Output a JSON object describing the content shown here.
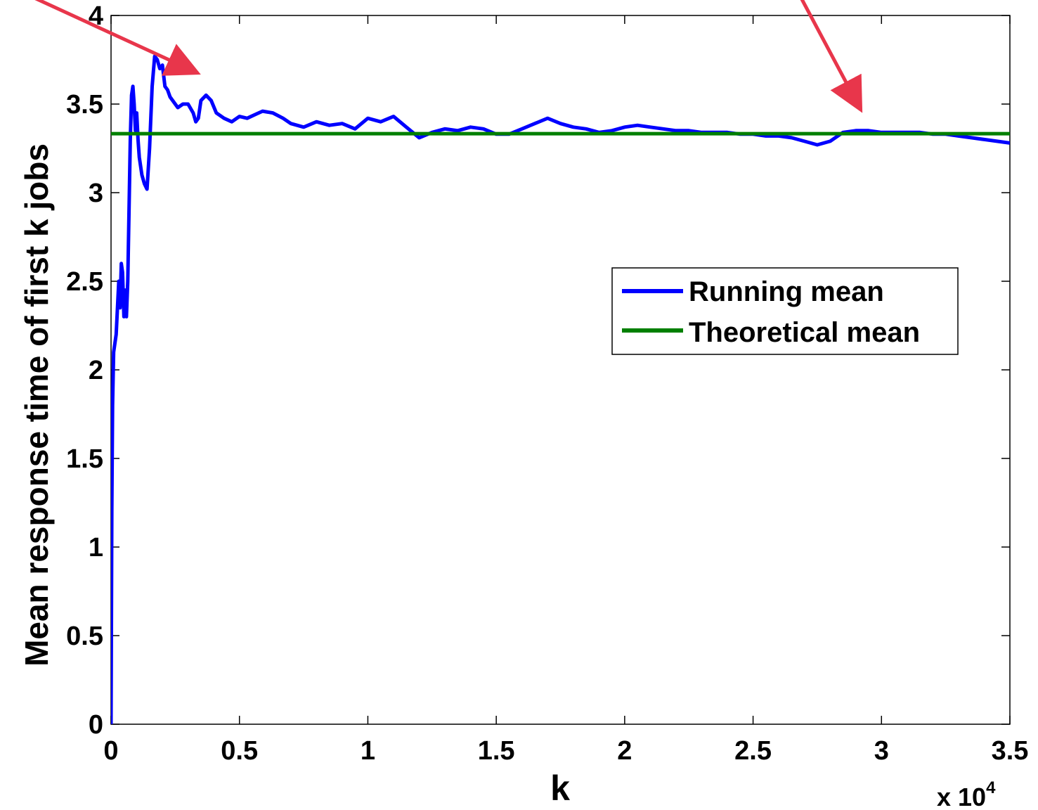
{
  "chart_data": {
    "type": "line",
    "xlabel": "k",
    "ylabel": "Mean response time of first k jobs",
    "x_exponent_label": "x 10",
    "x_exponent_power": "4",
    "xlim": [
      0,
      35000
    ],
    "ylim": [
      0,
      4
    ],
    "x_ticks": [
      0,
      5000,
      10000,
      15000,
      20000,
      25000,
      30000,
      35000
    ],
    "x_tick_labels": [
      "0",
      "0.5",
      "1",
      "1.5",
      "2",
      "2.5",
      "3",
      "3.5"
    ],
    "y_ticks": [
      0,
      0.5,
      1,
      1.5,
      2,
      2.5,
      3,
      3.5,
      4
    ],
    "y_tick_labels": [
      "0",
      "0.5",
      "1",
      "1.5",
      "2",
      "2.5",
      "3",
      "3.5",
      "4"
    ],
    "grid": false,
    "legend_position": "right-middle",
    "series": [
      {
        "name": "Running mean",
        "color": "#0000ff",
        "points": [
          [
            0,
            0.0
          ],
          [
            30,
            1.2
          ],
          [
            60,
            1.8
          ],
          [
            100,
            2.1
          ],
          [
            200,
            2.2
          ],
          [
            300,
            2.5
          ],
          [
            350,
            2.35
          ],
          [
            400,
            2.6
          ],
          [
            450,
            2.55
          ],
          [
            500,
            2.3
          ],
          [
            550,
            2.45
          ],
          [
            600,
            2.3
          ],
          [
            650,
            2.5
          ],
          [
            700,
            2.9
          ],
          [
            750,
            3.3
          ],
          [
            800,
            3.55
          ],
          [
            850,
            3.6
          ],
          [
            900,
            3.5
          ],
          [
            950,
            3.35
          ],
          [
            1000,
            3.45
          ],
          [
            1050,
            3.3
          ],
          [
            1100,
            3.2
          ],
          [
            1200,
            3.1
          ],
          [
            1300,
            3.05
          ],
          [
            1400,
            3.02
          ],
          [
            1500,
            3.25
          ],
          [
            1600,
            3.6
          ],
          [
            1700,
            3.77
          ],
          [
            1800,
            3.75
          ],
          [
            1900,
            3.7
          ],
          [
            2000,
            3.72
          ],
          [
            2100,
            3.6
          ],
          [
            2200,
            3.58
          ],
          [
            2300,
            3.54
          ],
          [
            2400,
            3.52
          ],
          [
            2600,
            3.48
          ],
          [
            2800,
            3.5
          ],
          [
            3000,
            3.5
          ],
          [
            3200,
            3.45
          ],
          [
            3300,
            3.4
          ],
          [
            3400,
            3.42
          ],
          [
            3500,
            3.52
          ],
          [
            3700,
            3.55
          ],
          [
            3900,
            3.52
          ],
          [
            4100,
            3.45
          ],
          [
            4400,
            3.42
          ],
          [
            4700,
            3.4
          ],
          [
            5000,
            3.43
          ],
          [
            5300,
            3.42
          ],
          [
            5600,
            3.44
          ],
          [
            5900,
            3.46
          ],
          [
            6300,
            3.45
          ],
          [
            6700,
            3.42
          ],
          [
            7000,
            3.39
          ],
          [
            7500,
            3.37
          ],
          [
            8000,
            3.4
          ],
          [
            8500,
            3.38
          ],
          [
            9000,
            3.39
          ],
          [
            9500,
            3.36
          ],
          [
            10000,
            3.42
          ],
          [
            10500,
            3.4
          ],
          [
            11000,
            3.43
          ],
          [
            11500,
            3.37
          ],
          [
            12000,
            3.31
          ],
          [
            12500,
            3.34
          ],
          [
            13000,
            3.36
          ],
          [
            13500,
            3.35
          ],
          [
            14000,
            3.37
          ],
          [
            14500,
            3.36
          ],
          [
            15000,
            3.33
          ],
          [
            15500,
            3.33
          ],
          [
            16000,
            3.36
          ],
          [
            16500,
            3.39
          ],
          [
            17000,
            3.42
          ],
          [
            17500,
            3.39
          ],
          [
            18000,
            3.37
          ],
          [
            18500,
            3.36
          ],
          [
            19000,
            3.34
          ],
          [
            19500,
            3.35
          ],
          [
            20000,
            3.37
          ],
          [
            20500,
            3.38
          ],
          [
            21000,
            3.37
          ],
          [
            21500,
            3.36
          ],
          [
            22000,
            3.35
          ],
          [
            22500,
            3.35
          ],
          [
            23000,
            3.34
          ],
          [
            23500,
            3.34
          ],
          [
            24000,
            3.34
          ],
          [
            24500,
            3.33
          ],
          [
            25000,
            3.33
          ],
          [
            25500,
            3.32
          ],
          [
            26000,
            3.32
          ],
          [
            26500,
            3.31
          ],
          [
            27000,
            3.29
          ],
          [
            27500,
            3.27
          ],
          [
            28000,
            3.29
          ],
          [
            28500,
            3.34
          ],
          [
            29000,
            3.35
          ],
          [
            29500,
            3.35
          ],
          [
            30000,
            3.34
          ],
          [
            30500,
            3.34
          ],
          [
            31000,
            3.34
          ],
          [
            31500,
            3.34
          ],
          [
            32000,
            3.33
          ],
          [
            32500,
            3.33
          ],
          [
            33000,
            3.32
          ],
          [
            33500,
            3.31
          ],
          [
            34000,
            3.3
          ],
          [
            34500,
            3.29
          ],
          [
            35000,
            3.28
          ]
        ]
      },
      {
        "name": "Theoretical mean",
        "color": "#007f00",
        "points": [
          [
            0,
            3.333
          ],
          [
            35000,
            3.333
          ]
        ]
      }
    ],
    "annotations": [
      {
        "type": "arrow",
        "color": "#e8364b",
        "from": [
          -3000,
          4.1
        ],
        "to": [
          3000,
          3.7
        ]
      },
      {
        "type": "arrow",
        "color": "#e8364b",
        "from": [
          26500,
          4.2
        ],
        "to": [
          29000,
          3.52
        ]
      }
    ]
  }
}
